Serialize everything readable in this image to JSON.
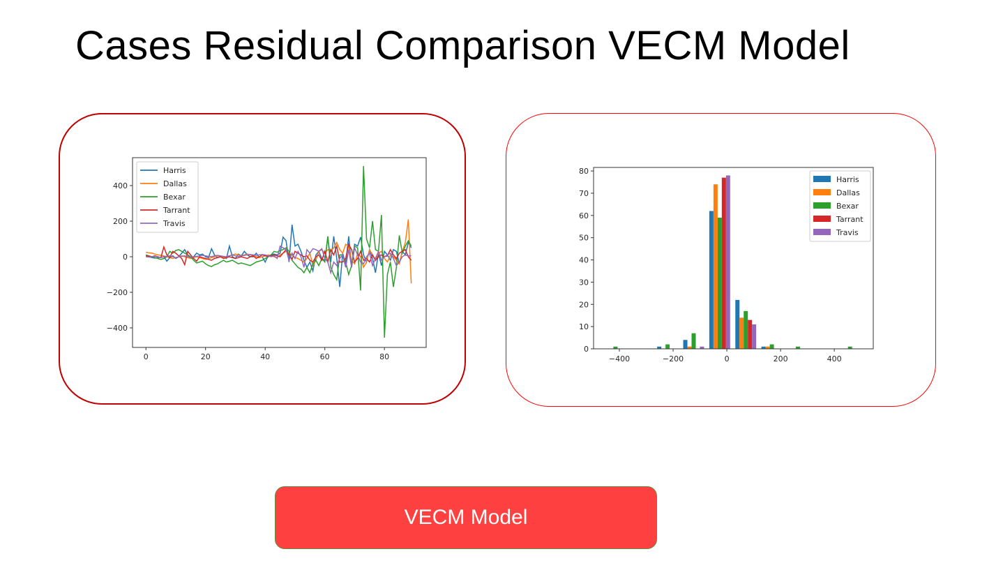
{
  "slide": {
    "title": "Cases Residual Comparison VECM Model",
    "button_label": "VECM Model",
    "colors": {
      "left_frame": "#c00000",
      "right_frame": "#ff0000",
      "button_fill": "#ff4040",
      "button_border": "#5e8c3a"
    }
  },
  "chart_data": [
    {
      "type": "line",
      "title": "",
      "xlabel": "",
      "ylabel": "",
      "xlim": [
        -4.5,
        94
      ],
      "ylim": [
        -510,
        557
      ],
      "x_ticks": [
        "0",
        "20",
        "40",
        "60",
        "80"
      ],
      "y_ticks": [
        "400",
        "200",
        "0",
        "−200",
        "−400"
      ],
      "legend_placement": "top-left",
      "grid": false,
      "series": [
        {
          "name": "Harris",
          "color": "#1f77b4",
          "values": [
            5,
            0,
            -5,
            -8,
            -5,
            -3,
            0,
            -25,
            -5,
            5,
            -10,
            0,
            20,
            40,
            10,
            -10,
            0,
            20,
            10,
            15,
            0,
            -5,
            45,
            10,
            -5,
            0,
            0,
            -10,
            60,
            0,
            -10,
            15,
            5,
            30,
            10,
            0,
            0,
            20,
            -5,
            0,
            -30,
            5,
            10,
            15,
            10,
            20,
            110,
            90,
            -30,
            180,
            60,
            70,
            30,
            -20,
            -60,
            -30,
            -80,
            10,
            30,
            -10,
            -20,
            110,
            -30,
            115,
            -10,
            -170,
            20,
            -40,
            115,
            -50,
            70,
            60,
            110,
            10,
            -30,
            40,
            -10,
            -90,
            20,
            -50,
            30,
            10,
            -20,
            40,
            30,
            -40,
            30,
            10,
            80,
            50
          ]
        },
        {
          "name": "Dallas",
          "color": "#ff7f0e",
          "values": [
            25,
            22,
            20,
            15,
            10,
            8,
            5,
            0,
            -5,
            -10,
            -5,
            0,
            5,
            0,
            -5,
            -10,
            -5,
            0,
            -5,
            -10,
            -15,
            -10,
            -5,
            0,
            5,
            0,
            -5,
            0,
            5,
            10,
            15,
            10,
            5,
            10,
            15,
            10,
            5,
            0,
            -5,
            0,
            5,
            10,
            5,
            0,
            -5,
            10,
            20,
            30,
            20,
            10,
            -5,
            -10,
            -20,
            -30,
            -10,
            20,
            -50,
            -20,
            30,
            40,
            20,
            40,
            30,
            50,
            80,
            40,
            20,
            70,
            60,
            -20,
            -40,
            20,
            0,
            -60,
            -30,
            40,
            10,
            -20,
            20,
            30,
            -10,
            -30,
            10,
            0,
            -20,
            -40,
            30,
            80,
            210,
            -150
          ]
        },
        {
          "name": "Bexar",
          "color": "#2ca02c",
          "values": [
            10,
            5,
            0,
            -5,
            -10,
            -15,
            -10,
            0,
            30,
            20,
            35,
            40,
            30,
            20,
            10,
            0,
            -20,
            -35,
            -30,
            -25,
            -40,
            -50,
            -55,
            -45,
            -40,
            -30,
            -20,
            -30,
            -25,
            -20,
            -30,
            -40,
            -35,
            -40,
            -45,
            -50,
            -40,
            -30,
            -25,
            -20,
            -10,
            0,
            10,
            30,
            25,
            35,
            40,
            50,
            30,
            -20,
            -40,
            -60,
            -70,
            -90,
            -60,
            -90,
            -40,
            -20,
            -50,
            -10,
            -30,
            115,
            -60,
            -100,
            -130,
            10,
            10,
            -30,
            -100,
            -50,
            60,
            50,
            -190,
            510,
            100,
            50,
            200,
            40,
            30,
            235,
            -455,
            -100,
            -30,
            -170,
            -60,
            120,
            20,
            60,
            90,
            60
          ]
        },
        {
          "name": "Tarrant",
          "color": "#d62728",
          "values": [
            5,
            3,
            0,
            5,
            0,
            -5,
            55,
            10,
            -5,
            30,
            20,
            5,
            -10,
            -45,
            30,
            10,
            -10,
            -25,
            0,
            -5,
            -10,
            -15,
            -20,
            -10,
            -5,
            0,
            -10,
            -5,
            0,
            -5,
            -10,
            -5,
            0,
            -5,
            -10,
            0,
            5,
            -10,
            0,
            10,
            5,
            0,
            5,
            10,
            5,
            0,
            20,
            40,
            10,
            -15,
            30,
            20,
            10,
            0,
            5,
            -20,
            -30,
            0,
            10,
            -20,
            30,
            -30,
            40,
            10,
            60,
            -30,
            -30,
            -10,
            70,
            40,
            -30,
            -10,
            30,
            -20,
            -10,
            -30,
            10,
            -20,
            0,
            10,
            0,
            5,
            40,
            10,
            -10,
            20,
            30,
            40,
            0,
            -20
          ]
        },
        {
          "name": "Travis",
          "color": "#9467bd",
          "values": [
            0,
            -2,
            0,
            2,
            0,
            -5,
            0,
            2,
            5,
            0,
            -5,
            0,
            2,
            5,
            0,
            -2,
            0,
            2,
            5,
            8,
            5,
            2,
            0,
            5,
            8,
            5,
            2,
            0,
            5,
            10,
            5,
            2,
            5,
            8,
            10,
            12,
            10,
            8,
            10,
            12,
            10,
            5,
            0,
            5,
            -10,
            60,
            50,
            40,
            -20,
            20,
            -10,
            30,
            0,
            -60,
            40,
            20,
            45,
            40,
            30,
            45,
            -10,
            -30,
            -90,
            -30,
            -50,
            -10,
            10,
            -60,
            40,
            -60,
            50,
            10,
            -30,
            -40,
            0,
            20,
            -50,
            -10,
            30,
            -20,
            0,
            10,
            20,
            -10,
            -50,
            -30,
            0,
            10,
            5,
            5
          ]
        }
      ]
    },
    {
      "type": "bar",
      "subtype": "histogram",
      "title": "",
      "xlabel": "",
      "ylabel": "",
      "xlim": [
        -496,
        545
      ],
      "ylim": [
        0,
        81.6
      ],
      "x_ticks": [
        "−400",
        "−200",
        "0",
        "200",
        "400"
      ],
      "y_ticks": [
        "0",
        "10",
        "20",
        "30",
        "40",
        "50",
        "60",
        "70",
        "80"
      ],
      "legend_placement": "top-right",
      "grid": false,
      "bin_edges": [
        -463,
        -366,
        -269,
        -172,
        -75,
        22,
        119,
        216,
        313,
        410,
        507
      ],
      "series": [
        {
          "name": "Harris",
          "color": "#1f77b4",
          "values": [
            0,
            0,
            1,
            4,
            62,
            22,
            1,
            0,
            0,
            0
          ]
        },
        {
          "name": "Dallas",
          "color": "#ff7f0e",
          "values": [
            0,
            0,
            0,
            1,
            74,
            14,
            1,
            0,
            0,
            0
          ]
        },
        {
          "name": "Bexar",
          "color": "#2ca02c",
          "values": [
            1,
            0,
            2,
            7,
            59,
            17,
            2,
            1,
            0,
            1
          ]
        },
        {
          "name": "Tarrant",
          "color": "#d62728",
          "values": [
            0,
            0,
            0,
            0,
            77,
            13,
            0,
            0,
            0,
            0
          ]
        },
        {
          "name": "Travis",
          "color": "#9467bd",
          "values": [
            0,
            0,
            0,
            1,
            78,
            11,
            0,
            0,
            0,
            0
          ]
        }
      ]
    }
  ]
}
